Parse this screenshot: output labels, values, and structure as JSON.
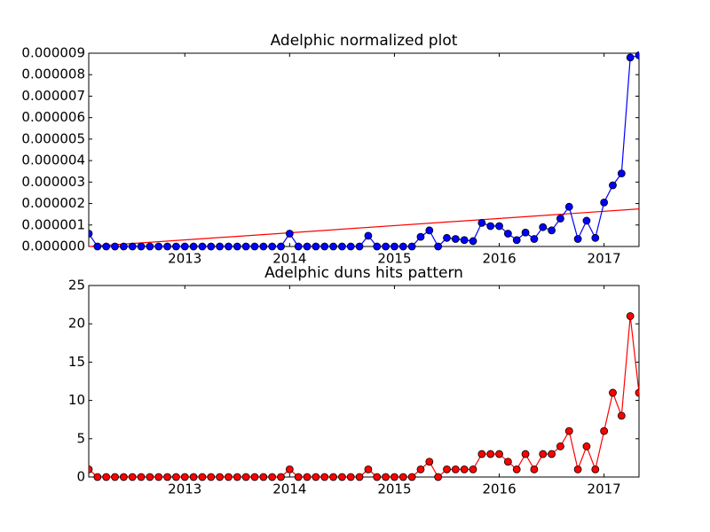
{
  "chart_data": [
    {
      "type": "line",
      "title": "Adelphic normalized plot",
      "x": [
        "2012-02",
        "2012-03",
        "2012-04",
        "2012-05",
        "2012-06",
        "2012-07",
        "2012-08",
        "2012-09",
        "2012-10",
        "2012-11",
        "2012-12",
        "2013-01",
        "2013-02",
        "2013-03",
        "2013-04",
        "2013-05",
        "2013-06",
        "2013-07",
        "2013-08",
        "2013-09",
        "2013-10",
        "2013-11",
        "2013-12",
        "2014-01",
        "2014-02",
        "2014-03",
        "2014-04",
        "2014-05",
        "2014-06",
        "2014-07",
        "2014-08",
        "2014-09",
        "2014-10",
        "2014-11",
        "2014-12",
        "2015-01",
        "2015-02",
        "2015-03",
        "2015-04",
        "2015-05",
        "2015-06",
        "2015-07",
        "2015-08",
        "2015-09",
        "2015-10",
        "2015-11",
        "2015-12",
        "2016-01",
        "2016-02",
        "2016-03",
        "2016-04",
        "2016-05",
        "2016-06",
        "2016-07",
        "2016-08",
        "2016-09",
        "2016-10",
        "2016-11",
        "2016-12",
        "2017-01",
        "2017-02",
        "2017-03",
        "2017-04",
        "2017-05"
      ],
      "series": [
        {
          "color": "#0000ff",
          "values": [
            6e-07,
            0,
            0,
            0,
            0,
            0,
            0,
            0,
            0,
            0,
            0,
            0,
            0,
            0,
            0,
            0,
            0,
            0,
            0,
            0,
            0,
            0,
            0,
            6e-07,
            0,
            0,
            0,
            0,
            0,
            0,
            0,
            0,
            5e-07,
            0,
            0,
            0,
            0,
            0,
            4.5e-07,
            7.5e-07,
            0,
            4e-07,
            3.5e-07,
            3e-07,
            2.5e-07,
            1.1e-06,
            9.5e-07,
            9.5e-07,
            6e-07,
            3e-07,
            6.5e-07,
            3.5e-07,
            9e-07,
            7.5e-07,
            1.3e-06,
            1.85e-06,
            3.5e-07,
            1.2e-06,
            4e-07,
            2.05e-06,
            2.85e-06,
            3.4e-06,
            8.8e-06,
            8.9e-06
          ]
        }
      ],
      "trend": {
        "color": "#ff0000",
        "x": [
          "2012-02",
          "2017-05"
        ],
        "values": [
          0,
          1.75e-06
        ]
      },
      "xlim": [
        "2012-02",
        "2017-05"
      ],
      "xticks": [
        "2013",
        "2014",
        "2015",
        "2016",
        "2017"
      ],
      "ylim": [
        0,
        9e-06
      ],
      "yticks": [
        {
          "value": 0,
          "label": "0.000000"
        },
        {
          "value": 1e-06,
          "label": "0.000001"
        },
        {
          "value": 2e-06,
          "label": "0.000002"
        },
        {
          "value": 3e-06,
          "label": "0.000003"
        },
        {
          "value": 4e-06,
          "label": "0.000004"
        },
        {
          "value": 5e-06,
          "label": "0.000005"
        },
        {
          "value": 6e-06,
          "label": "0.000006"
        },
        {
          "value": 7e-06,
          "label": "0.000007"
        },
        {
          "value": 8e-06,
          "label": "0.000008"
        },
        {
          "value": 9e-06,
          "label": "0.000009"
        }
      ]
    },
    {
      "type": "line",
      "title": "Adelphic duns hits pattern",
      "x": [
        "2012-02",
        "2012-03",
        "2012-04",
        "2012-05",
        "2012-06",
        "2012-07",
        "2012-08",
        "2012-09",
        "2012-10",
        "2012-11",
        "2012-12",
        "2013-01",
        "2013-02",
        "2013-03",
        "2013-04",
        "2013-05",
        "2013-06",
        "2013-07",
        "2013-08",
        "2013-09",
        "2013-10",
        "2013-11",
        "2013-12",
        "2014-01",
        "2014-02",
        "2014-03",
        "2014-04",
        "2014-05",
        "2014-06",
        "2014-07",
        "2014-08",
        "2014-09",
        "2014-10",
        "2014-11",
        "2014-12",
        "2015-01",
        "2015-02",
        "2015-03",
        "2015-04",
        "2015-05",
        "2015-06",
        "2015-07",
        "2015-08",
        "2015-09",
        "2015-10",
        "2015-11",
        "2015-12",
        "2016-01",
        "2016-02",
        "2016-03",
        "2016-04",
        "2016-05",
        "2016-06",
        "2016-07",
        "2016-08",
        "2016-09",
        "2016-10",
        "2016-11",
        "2016-12",
        "2017-01",
        "2017-02",
        "2017-03",
        "2017-04",
        "2017-05"
      ],
      "series": [
        {
          "color": "#ff0000",
          "values": [
            1,
            0,
            0,
            0,
            0,
            0,
            0,
            0,
            0,
            0,
            0,
            0,
            0,
            0,
            0,
            0,
            0,
            0,
            0,
            0,
            0,
            0,
            0,
            1,
            0,
            0,
            0,
            0,
            0,
            0,
            0,
            0,
            1,
            0,
            0,
            0,
            0,
            0,
            1,
            2,
            0,
            1,
            1,
            1,
            1,
            3,
            3,
            3,
            2,
            1,
            3,
            1,
            3,
            3,
            4,
            6,
            1,
            4,
            1,
            6,
            11,
            8,
            21,
            11
          ]
        }
      ],
      "xlim": [
        "2012-02",
        "2017-05"
      ],
      "xticks": [
        "2013",
        "2014",
        "2015",
        "2016",
        "2017"
      ],
      "ylim": [
        0,
        25
      ],
      "yticks": [
        0,
        5,
        10,
        15,
        20,
        25
      ]
    }
  ]
}
